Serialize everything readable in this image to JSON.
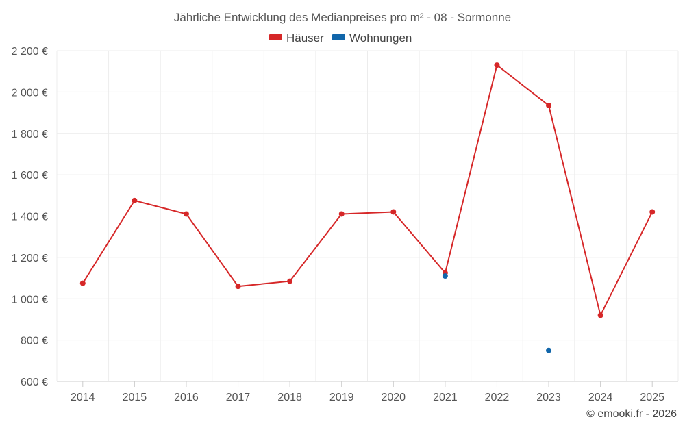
{
  "chart_data": {
    "type": "line",
    "title": "Jährliche Entwicklung des Medianpreises pro m² - 08 - Sormonne",
    "categories": [
      "2014",
      "2015",
      "2016",
      "2017",
      "2018",
      "2019",
      "2020",
      "2021",
      "2022",
      "2023",
      "2024",
      "2025"
    ],
    "y_ticks": [
      600,
      800,
      1000,
      1200,
      1400,
      1600,
      1800,
      2000,
      2200
    ],
    "y_tick_labels": [
      "600 €",
      "800 €",
      "1 000 €",
      "1 200 €",
      "1 400 €",
      "1 600 €",
      "1 800 €",
      "2 000 €",
      "2 200 €"
    ],
    "ylim": [
      600,
      2200
    ],
    "grid": true,
    "legend_position": "top-center",
    "series": [
      {
        "name": "Häuser",
        "color": "#d62728",
        "values": [
          1075,
          1475,
          1410,
          1060,
          1085,
          1410,
          1420,
          1125,
          2130,
          1935,
          920,
          1420
        ]
      },
      {
        "name": "Wohnungen",
        "color": "#1166aa",
        "values": [
          null,
          null,
          null,
          null,
          null,
          null,
          null,
          1110,
          null,
          750,
          null,
          null
        ]
      }
    ]
  },
  "credit": "© emooki.fr - 2026"
}
